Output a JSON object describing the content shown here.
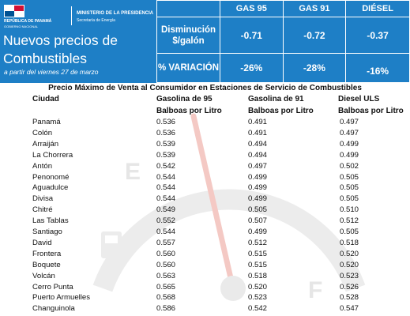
{
  "header": {
    "gov_line1": "REPÚBLICA DE PANAMÁ",
    "gov_line2": "GOBIERNO NACIONAL",
    "ministry_line1": "MINISTERIO DE LA PRESIDENCIA",
    "ministry_line2": "Secretaría de Energía",
    "title": "Nuevos precios de Combustibles",
    "subtitle": "a partir del viernes 27 de marzo",
    "flag_colors": {
      "red": "#d21034",
      "blue": "#005293",
      "white": "#ffffff"
    },
    "bg_color": "#1e7fc6"
  },
  "price_table": {
    "fuels": [
      "GAS 95",
      "GAS 91",
      "DIÉSEL"
    ],
    "disminucion_label": "Disminución $/galón",
    "disminucion": [
      "-0.71",
      "-0.72",
      "-0.37"
    ],
    "variacion_label": "% VARIACIÓN",
    "variacion": [
      "-26%",
      "-28%",
      "-16%"
    ]
  },
  "sheet": {
    "title": "Precio Máximo de Venta al Consumidor en Estaciones de Servicio de Combustibles",
    "columns": [
      {
        "line1": "Ciudad",
        "line2": ""
      },
      {
        "line1": "Gasolina de 95",
        "line2": "Balboas por Litro"
      },
      {
        "line1": "Gasolina de 91",
        "line2": "Balboas por Litro"
      },
      {
        "line1": "Diesel ULS",
        "line2": "Balboas por Litro"
      }
    ],
    "rows": [
      {
        "city": "Panamá",
        "g95": "0.536",
        "g91": "0.491",
        "diesel": "0.497"
      },
      {
        "city": "Colón",
        "g95": "0.536",
        "g91": "0.491",
        "diesel": "0.497"
      },
      {
        "city": "Arraiján",
        "g95": "0.539",
        "g91": "0.494",
        "diesel": "0.499"
      },
      {
        "city": "La Chorrera",
        "g95": "0.539",
        "g91": "0.494",
        "diesel": "0.499"
      },
      {
        "city": "Antón",
        "g95": "0.542",
        "g91": "0.497",
        "diesel": "0.502"
      },
      {
        "city": "Penonomé",
        "g95": "0.544",
        "g91": "0.499",
        "diesel": "0.505"
      },
      {
        "city": "Aguadulce",
        "g95": "0.544",
        "g91": "0.499",
        "diesel": "0.505"
      },
      {
        "city": "Divisa",
        "g95": "0.544",
        "g91": "0.499",
        "diesel": "0.505"
      },
      {
        "city": "Chitré",
        "g95": "0.549",
        "g91": "0.505",
        "diesel": "0.510"
      },
      {
        "city": "Las Tablas",
        "g95": "0.552",
        "g91": "0.507",
        "diesel": "0.512"
      },
      {
        "city": "Santiago",
        "g95": "0.544",
        "g91": "0.499",
        "diesel": "0.505"
      },
      {
        "city": "David",
        "g95": "0.557",
        "g91": "0.512",
        "diesel": "0.518"
      },
      {
        "city": "Frontera",
        "g95": "0.560",
        "g91": "0.515",
        "diesel": "0.520"
      },
      {
        "city": "Boquete",
        "g95": "0.560",
        "g91": "0.515",
        "diesel": "0.520"
      },
      {
        "city": "Volcán",
        "g95": "0.563",
        "g91": "0.518",
        "diesel": "0.523"
      },
      {
        "city": "Cerro Punta",
        "g95": "0.565",
        "g91": "0.520",
        "diesel": "0.526"
      },
      {
        "city": "Puerto Armuelles",
        "g95": "0.568",
        "g91": "0.523",
        "diesel": "0.528"
      },
      {
        "city": "Changuinola",
        "g95": "0.586",
        "g91": "0.542",
        "diesel": "0.547"
      }
    ]
  },
  "watermark": {
    "gauge_left_letter": "E",
    "gauge_right_letter": "F",
    "icon": "fuel-pump-icon",
    "needle_color": "#e03c2e"
  }
}
